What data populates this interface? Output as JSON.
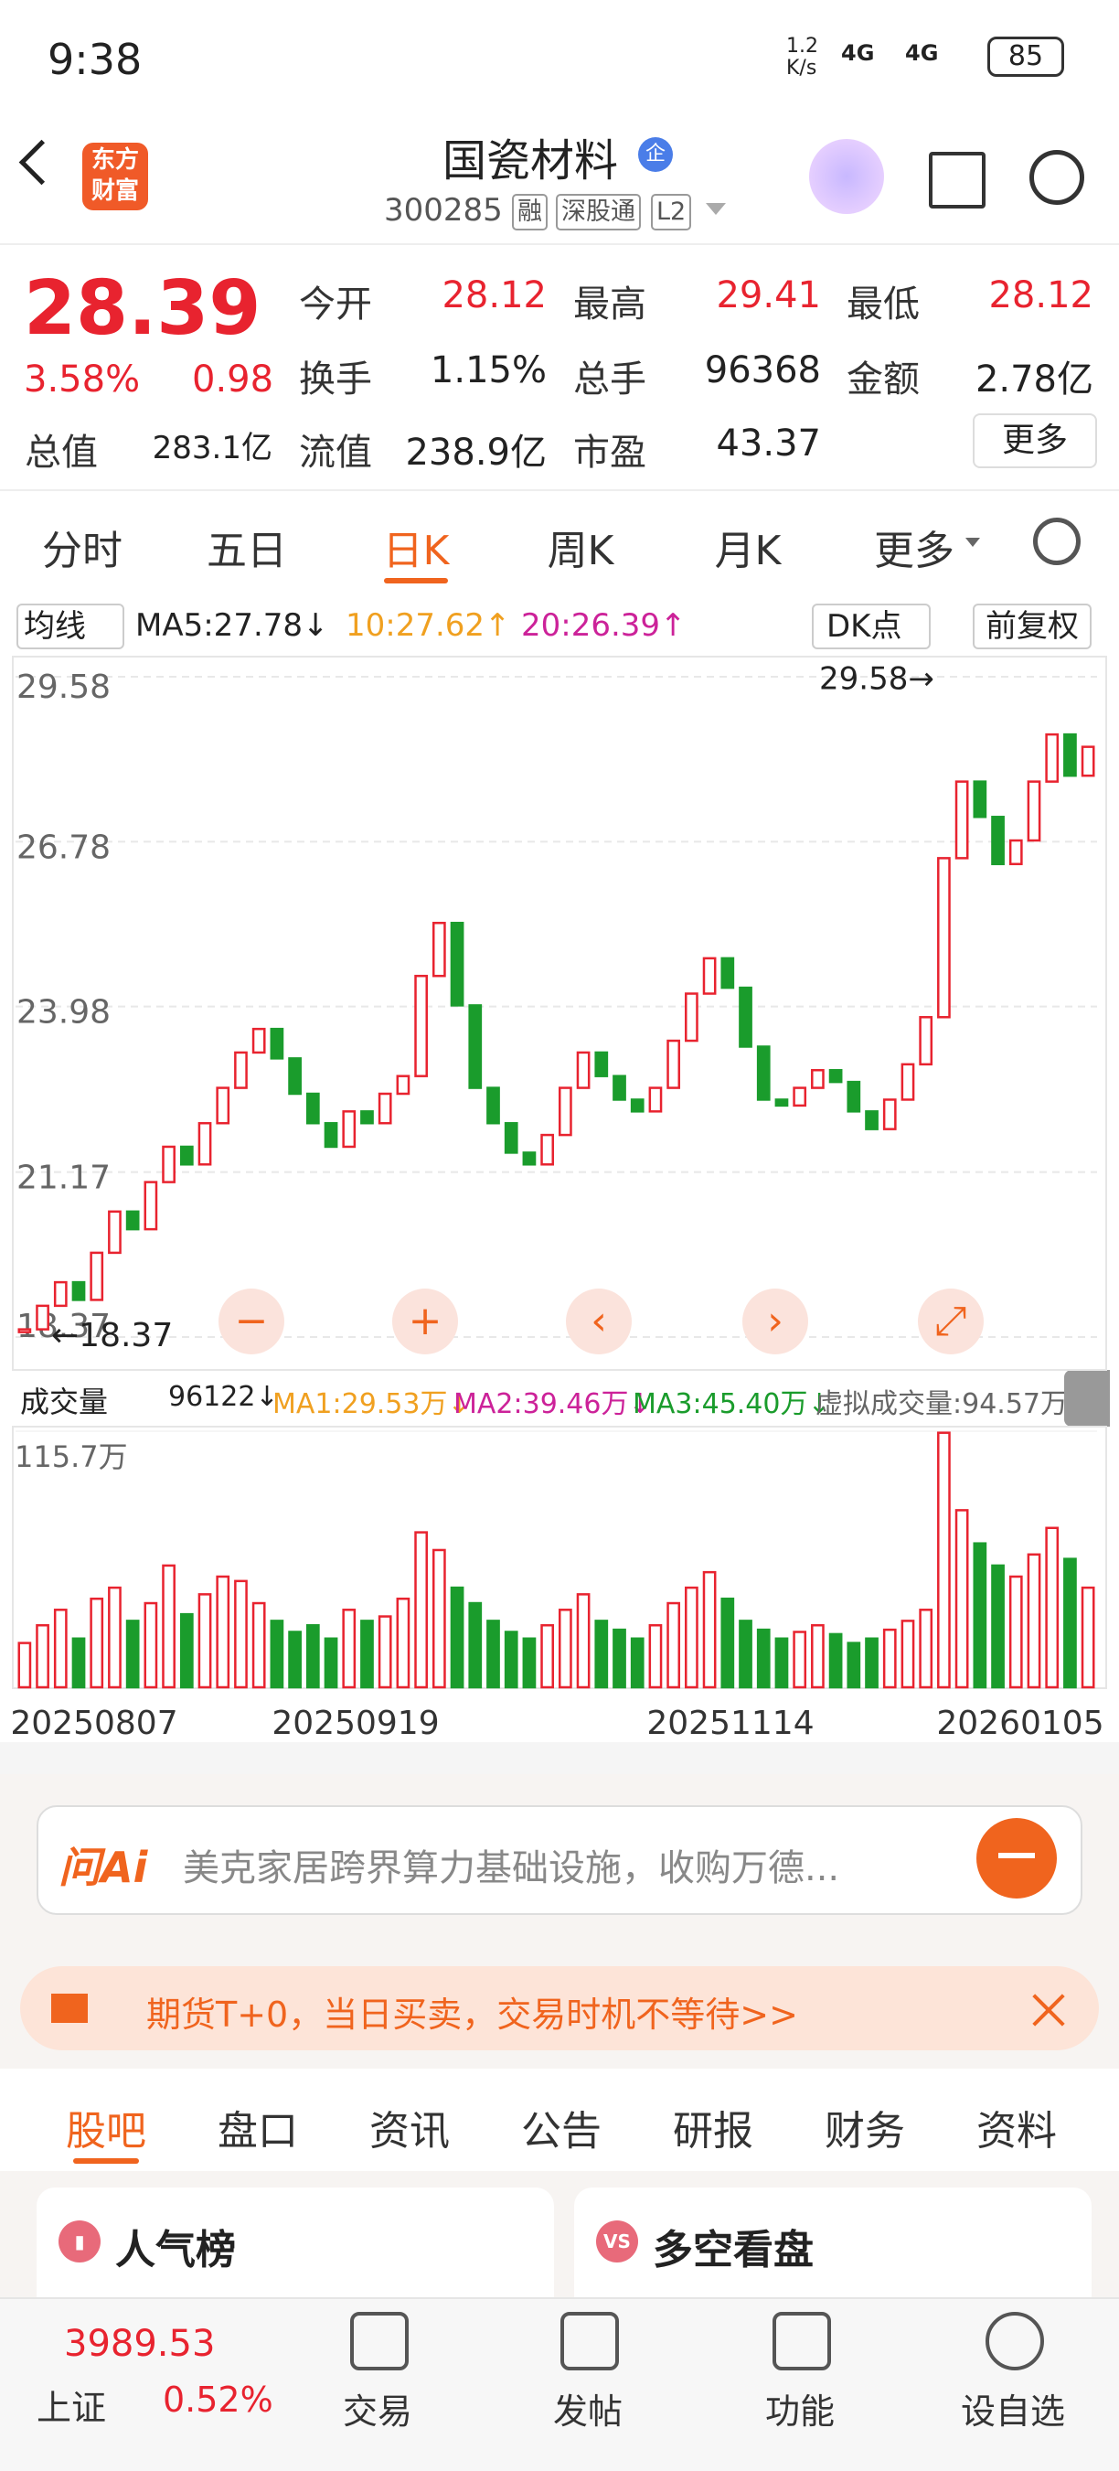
{
  "status": {
    "time": "9:38",
    "speed_value": "1.2",
    "speed_unit": "K/s",
    "net1": "4G",
    "net2": "4G",
    "battery": "85"
  },
  "header": {
    "logo": [
      "东方",
      "财富"
    ],
    "title": "国瓷材料",
    "badge": "企",
    "code": "300285",
    "tags": [
      "融",
      "深股通",
      "L2"
    ]
  },
  "quote": {
    "price": "28.39",
    "change_pct": "3.58%",
    "change": "0.98",
    "fields": [
      {
        "label": "今开",
        "value": "28.12"
      },
      {
        "label": "最高",
        "value": "29.41"
      },
      {
        "label": "最低",
        "value": "28.12"
      },
      {
        "label": "换手",
        "value": "1.15%"
      },
      {
        "label": "总手",
        "value": "96368"
      },
      {
        "label": "金额",
        "value": "2.78亿"
      },
      {
        "label": "总值",
        "value": "283.1亿"
      },
      {
        "label": "流值",
        "value": "238.9亿"
      },
      {
        "label": "市盈",
        "value": "43.37"
      }
    ],
    "more": "更多"
  },
  "tabs": [
    "分时",
    "五日",
    "日K",
    "周K",
    "月K",
    "更多"
  ],
  "ma_bar": {
    "selector": "均线",
    "ma5": "MA5:27.78↓",
    "ma10": "10:27.62↑",
    "ma20": "20:26.39↑",
    "dk": "DK点",
    "fq": "前复权"
  },
  "chart_data": [
    {
      "type": "candlestick",
      "values": [
        18.5,
        18.9,
        19.3,
        19.0,
        19.8,
        20.5,
        20.2,
        21.0,
        21.6,
        21.3,
        22.0,
        22.6,
        23.2,
        23.6,
        23.1,
        22.5,
        22.0,
        21.6,
        22.2,
        22.0,
        22.5,
        22.8,
        24.5,
        25.4,
        24.0,
        22.6,
        22.0,
        21.5,
        21.3,
        21.8,
        22.6,
        23.2,
        22.8,
        22.4,
        22.2,
        22.6,
        23.4,
        24.2,
        24.8,
        24.3,
        23.3,
        22.4,
        22.3,
        22.6,
        22.9,
        22.7,
        22.2,
        21.9,
        22.4,
        23.0,
        23.8,
        26.5,
        27.8,
        27.2,
        26.4,
        26.8,
        27.8,
        28.6,
        27.9,
        28.39
      ],
      "ylim": [
        18.37,
        29.58
      ],
      "yticks": [
        29.58,
        26.78,
        23.98,
        21.17,
        18.37
      ],
      "up_color": "#e8232f",
      "down_color": "#1a9c2c",
      "annotations": [
        "29.58→",
        "←18.37"
      ]
    },
    {
      "type": "bar",
      "header": {
        "selector": "成交量",
        "vol": "96122↓",
        "ma1": "MA1:29.53万↓",
        "ma2": "MA2:39.46万↓",
        "ma3": "MA3:45.40万↓",
        "virtual": "虚拟成交量:94.57万"
      },
      "values": [
        20,
        28,
        35,
        22,
        40,
        45,
        30,
        38,
        55,
        33,
        42,
        50,
        48,
        38,
        30,
        25,
        28,
        22,
        35,
        30,
        32,
        40,
        70,
        62,
        45,
        38,
        30,
        25,
        22,
        28,
        35,
        42,
        30,
        26,
        22,
        28,
        38,
        45,
        52,
        40,
        30,
        26,
        22,
        25,
        28,
        24,
        20,
        22,
        26,
        30,
        35,
        115,
        80,
        65,
        55,
        50,
        60,
        72,
        58,
        45
      ],
      "ylim": [
        0,
        115.7
      ],
      "yticks": [
        {
          "value": 115.7,
          "label": "115.7万"
        }
      ],
      "date_labels": [
        "20250807",
        "20250919",
        "20251114",
        "20260105"
      ]
    }
  ],
  "search": {
    "brand": "问Ai",
    "placeholder": "美克家居跨界算力基础设施，收购万德..."
  },
  "banner": {
    "text": "期货T+0，当日买卖，交易时机不等待>>"
  },
  "section_tabs": [
    "股吧",
    "盘口",
    "资讯",
    "公告",
    "研报",
    "财务",
    "资料"
  ],
  "cards": [
    {
      "icon": "▮",
      "title": "人气榜"
    },
    {
      "icon": "VS",
      "title": "多空看盘"
    }
  ],
  "bottom": {
    "index_value": "3989.53",
    "index_name": "上证",
    "index_change": "0.52%",
    "items": [
      "交易",
      "发帖",
      "功能",
      "设自选"
    ]
  }
}
